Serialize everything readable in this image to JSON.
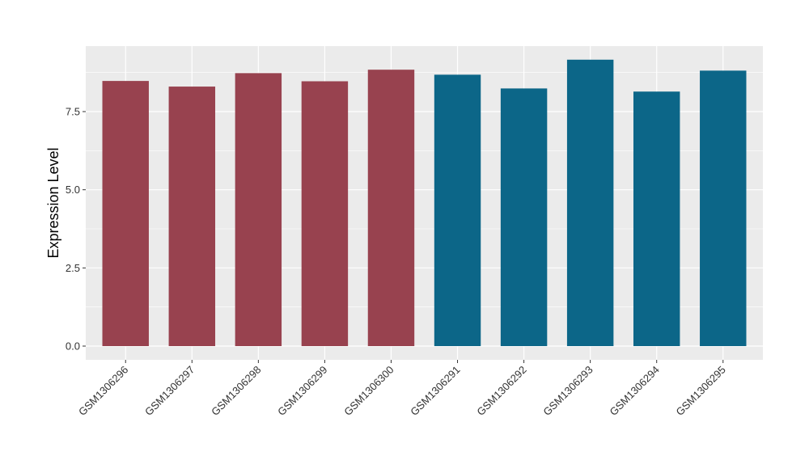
{
  "chart_data": {
    "type": "bar",
    "title": "",
    "xlabel": "",
    "ylabel": "Expression Level",
    "ylim": [
      0,
      9.6
    ],
    "yticks": [
      "0.0",
      "2.5",
      "5.0",
      "7.5"
    ],
    "ytick_values": [
      0,
      2.5,
      5.0,
      7.5
    ],
    "grid": true,
    "legend": "none",
    "categories": [
      "GSM1306296",
      "GSM1306297",
      "GSM1306298",
      "GSM1306299",
      "GSM1306300",
      "GSM1306291",
      "GSM1306292",
      "GSM1306293",
      "GSM1306294",
      "GSM1306295"
    ],
    "values": [
      8.48,
      8.3,
      8.73,
      8.47,
      8.84,
      8.68,
      8.24,
      9.16,
      8.14,
      8.81
    ],
    "colors": [
      "#98424f",
      "#98424f",
      "#98424f",
      "#98424f",
      "#98424f",
      "#0c6688",
      "#0c6688",
      "#0c6688",
      "#0c6688",
      "#0c6688"
    ],
    "panel_color": "#ebebeb",
    "grid_color": "#ffffff"
  }
}
